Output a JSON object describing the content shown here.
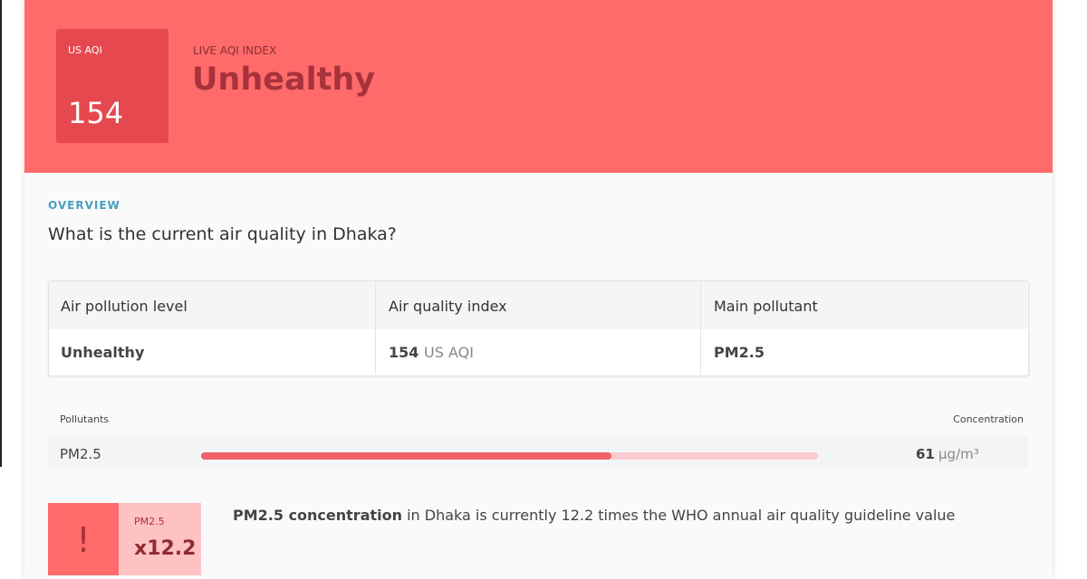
{
  "header": {
    "aqi_label": "US AQI",
    "aqi_value": 154,
    "kicker": "LIVE AQI INDEX",
    "status": "Unhealthy"
  },
  "overview": {
    "kicker": "OVERVIEW",
    "question": "What is the current air quality in Dhaka?"
  },
  "table": {
    "headers": [
      "Air pollution level",
      "Air quality index",
      "Main pollutant"
    ],
    "row": {
      "level": "Unhealthy",
      "aqi": 154,
      "aqi_unit": "US AQI",
      "pollutant": "PM2.5"
    }
  },
  "pollutants": {
    "header_left": "Pollutants",
    "header_right": "Concentration",
    "rows": [
      {
        "name": "PM2.5",
        "value": 61,
        "unit": "µg/m³"
      }
    ]
  },
  "alert": {
    "icon": "!",
    "pollutant": "PM2.5",
    "factor": "x12.2",
    "text_bold": "PM2.5 concentration",
    "text": "in Dhaka is currently 12.2 times the WHO annual air quality guideline value"
  }
}
